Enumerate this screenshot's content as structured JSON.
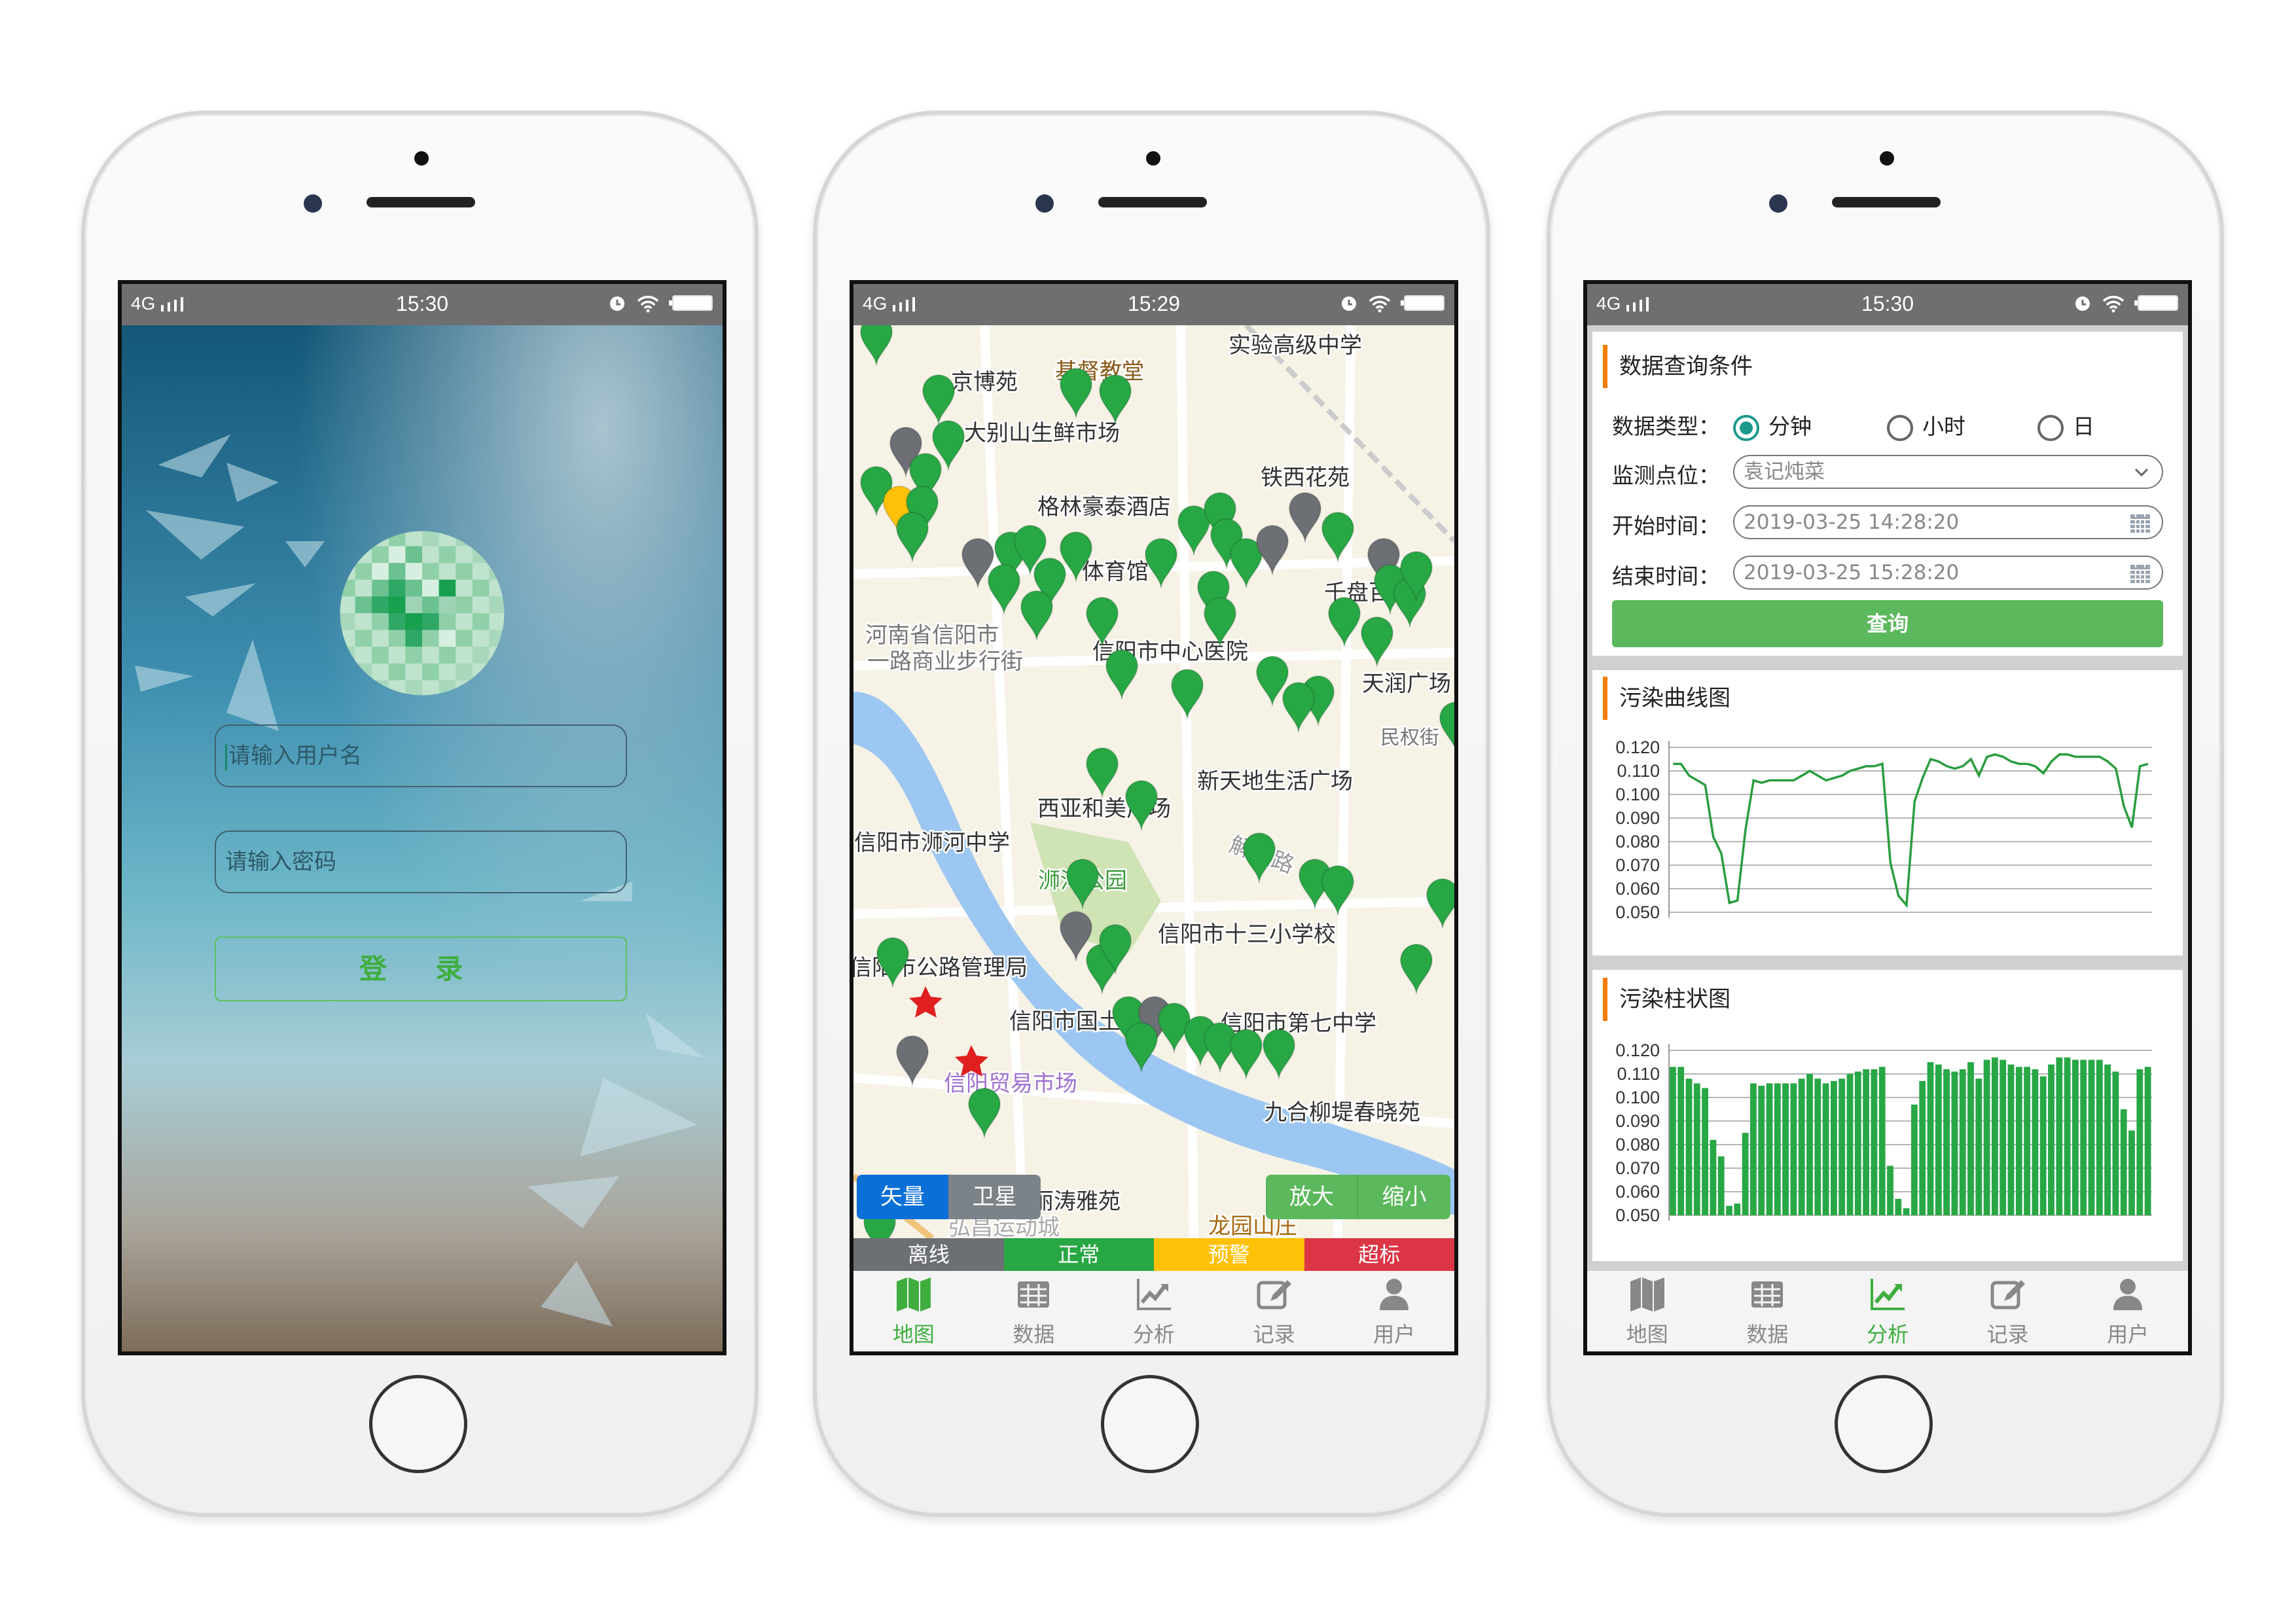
{
  "status_bars": [
    {
      "network": "4G",
      "time": "15:30"
    },
    {
      "network": "4G",
      "time": "15:29"
    },
    {
      "network": "4G",
      "time": "15:30"
    }
  ],
  "login": {
    "username_placeholder": "请输入用户名",
    "password_placeholder": "请输入密码",
    "login_label": "登 录"
  },
  "map": {
    "labels": [
      "京博苑",
      "基督教堂",
      "实验高级中学",
      "大别山生鲜市场",
      "铁西花苑",
      "格林豪泰酒店",
      "体育馆",
      "信阳市中心医院",
      "河南省信阳市",
      "一路商业步行街",
      "天润广场",
      "新天地生活广场",
      "西亚和美广场",
      "信阳市浉河中学",
      "解放路",
      "浉河公园",
      "信阳市十三小学校",
      "信阳市公路管理局",
      "信阳市国土资",
      "信阳市第七中学",
      "信阳贸易市场",
      "九合柳堤春晓苑",
      "丽涛雅苑",
      "弘昌运动城",
      "龙园山庄",
      "民权街",
      "千盘百"
    ],
    "layer_vector": "矢量",
    "layer_satellite": "卫星",
    "zoom_in": "放大",
    "zoom_out": "缩小",
    "legend": [
      {
        "label": "离线",
        "color": "#6c6f73"
      },
      {
        "label": "正常",
        "color": "#28a745"
      },
      {
        "label": "预警",
        "color": "#ffc107"
      },
      {
        "label": "超标",
        "color": "#dc3545"
      }
    ],
    "colors": {
      "land": "#f6f2e6",
      "water": "#9cc7f2",
      "park": "#cfe3b5",
      "road": "#ffffff",
      "vector_active": "#0a6fd6",
      "satellite": "#7b8389",
      "zoom": "#5cb85c"
    }
  },
  "tabs": [
    {
      "label": "地图",
      "icon": "map-icon"
    },
    {
      "label": "数据",
      "icon": "table-icon"
    },
    {
      "label": "分析",
      "icon": "chart-line-icon"
    },
    {
      "label": "记录",
      "icon": "edit-icon"
    },
    {
      "label": "用户",
      "icon": "user-icon"
    }
  ],
  "tab_active_color": "#3fae3f",
  "query": {
    "title": "数据查询条件",
    "data_type_label": "数据类型：",
    "data_type_options": [
      "分钟",
      "小时",
      "日"
    ],
    "data_type_selected": "分钟",
    "site_label": "监测点位：",
    "site_value": "袁记炖菜",
    "start_label": "开始时间：",
    "start_value": "2019-03-25 14:28:20",
    "end_label": "结束时间：",
    "end_value": "2019-03-25 15:28:20",
    "query_button": "查询"
  },
  "line_panel_title": "污染曲线图",
  "bar_panel_title": "污染柱状图",
  "chart_data": [
    {
      "type": "line",
      "title": "",
      "ylim": [
        0.05,
        0.12
      ],
      "yticks": [
        "0.050",
        "0.060",
        "0.070",
        "0.080",
        "0.090",
        "0.100",
        "0.110",
        "0.120"
      ],
      "grid": true,
      "color": "#2a9d3f",
      "values": [
        0.113,
        0.113,
        0.108,
        0.106,
        0.104,
        0.082,
        0.075,
        0.054,
        0.055,
        0.085,
        0.106,
        0.105,
        0.106,
        0.106,
        0.106,
        0.106,
        0.108,
        0.11,
        0.108,
        0.106,
        0.107,
        0.108,
        0.11,
        0.111,
        0.112,
        0.112,
        0.113,
        0.071,
        0.057,
        0.053,
        0.097,
        0.107,
        0.115,
        0.114,
        0.112,
        0.111,
        0.112,
        0.115,
        0.108,
        0.116,
        0.117,
        0.116,
        0.114,
        0.113,
        0.113,
        0.112,
        0.109,
        0.114,
        0.117,
        0.117,
        0.116,
        0.116,
        0.116,
        0.116,
        0.114,
        0.111,
        0.095,
        0.086,
        0.112,
        0.113
      ]
    },
    {
      "type": "bar",
      "title": "",
      "ylim": [
        0.05,
        0.12
      ],
      "yticks": [
        "0.050",
        "0.060",
        "0.070",
        "0.080",
        "0.090",
        "0.100",
        "0.110",
        "0.120"
      ],
      "grid": true,
      "color": "#28a745",
      "values": [
        0.113,
        0.113,
        0.108,
        0.106,
        0.104,
        0.082,
        0.075,
        0.054,
        0.055,
        0.085,
        0.106,
        0.105,
        0.106,
        0.106,
        0.106,
        0.106,
        0.108,
        0.11,
        0.108,
        0.106,
        0.107,
        0.108,
        0.11,
        0.111,
        0.112,
        0.112,
        0.113,
        0.071,
        0.057,
        0.053,
        0.097,
        0.107,
        0.115,
        0.114,
        0.112,
        0.111,
        0.112,
        0.115,
        0.108,
        0.116,
        0.117,
        0.116,
        0.114,
        0.113,
        0.113,
        0.112,
        0.109,
        0.114,
        0.117,
        0.117,
        0.116,
        0.116,
        0.116,
        0.116,
        0.114,
        0.111,
        0.095,
        0.086,
        0.112,
        0.113
      ]
    }
  ]
}
